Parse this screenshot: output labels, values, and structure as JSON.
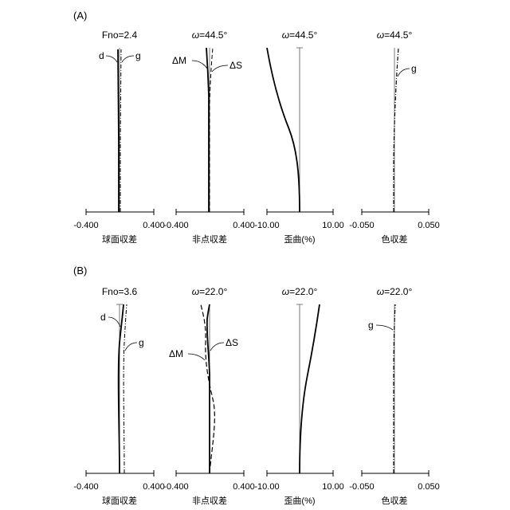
{
  "sections": [
    {
      "label": "(A)",
      "panels": [
        {
          "title": "Fno=2.4",
          "caption": "球面収差",
          "axis": {
            "left": "-0.400",
            "right": "0.400"
          },
          "tags": [
            "d",
            "g"
          ]
        },
        {
          "title_pre": "ω",
          "title": "=44.5°",
          "caption": "非点収差",
          "axis": {
            "left": "-0.400",
            "right": "0.400"
          },
          "tags": [
            "ΔM",
            "ΔS"
          ]
        },
        {
          "title_pre": "ω",
          "title": "=44.5°",
          "caption": "歪曲(%)",
          "axis": {
            "left": "-10.00",
            "right": "10.00"
          },
          "tags": []
        },
        {
          "title_pre": "ω",
          "title": "=44.5°",
          "caption": "色収差",
          "axis": {
            "left": "-0.050",
            "right": "0.050"
          },
          "tags": [
            "g"
          ]
        }
      ]
    },
    {
      "label": "(B)",
      "panels": [
        {
          "title": "Fno=3.6",
          "caption": "球面収差",
          "axis": {
            "left": "-0.400",
            "right": "0.400"
          },
          "tags": [
            "d",
            "g"
          ]
        },
        {
          "title_pre": "ω",
          "title": "=22.0°",
          "caption": "非点収差",
          "axis": {
            "left": "-0.400",
            "right": "0.400"
          },
          "tags": [
            "ΔM",
            "ΔS"
          ]
        },
        {
          "title_pre": "ω",
          "title": "=22.0°",
          "caption": "歪曲(%)",
          "axis": {
            "left": "-10.00",
            "right": "10.00"
          },
          "tags": []
        },
        {
          "title_pre": "ω",
          "title": "=22.0°",
          "caption": "色収差",
          "axis": {
            "left": "-0.050",
            "right": "0.050"
          },
          "tags": [
            "g"
          ]
        }
      ]
    }
  ],
  "colors": {
    "ink": "#000000",
    "axis": "#7a7a7a"
  }
}
